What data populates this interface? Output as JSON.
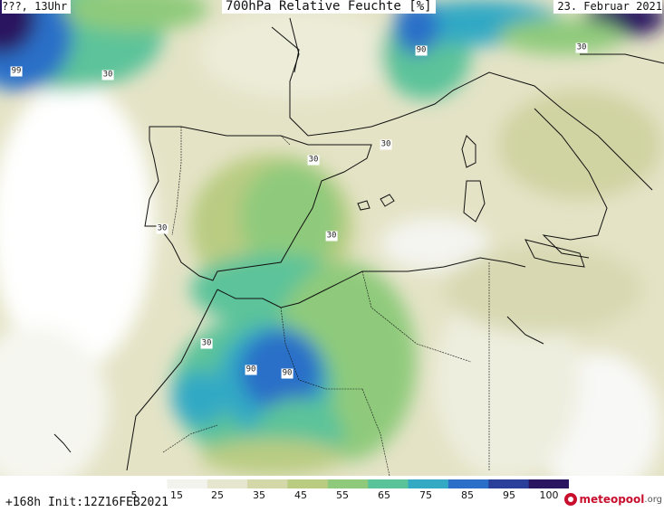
{
  "header": {
    "left": "???, 13Uhr",
    "center": "700hPa Relative Feuchte [%]",
    "right": "23. Februar 2021"
  },
  "contour_labels": [
    "99",
    "30",
    "90",
    "30",
    "30",
    "30",
    "30",
    "30",
    "30",
    "90",
    "90"
  ],
  "legend": {
    "ticks": [
      "5",
      "15",
      "25",
      "35",
      "45",
      "55",
      "65",
      "75",
      "85",
      "95",
      "100"
    ],
    "colors": [
      "#ffffff",
      "#f3f3ee",
      "#e6e6cf",
      "#d4d7a8",
      "#b9cc82",
      "#8fca7c",
      "#5bc39a",
      "#33a9c4",
      "#2c6fc8",
      "#2a3f9a",
      "#2a1560"
    ]
  },
  "footer": {
    "run_info": "+168h Init:12Z16FEB2021",
    "logo_text": "meteopool",
    "logo_suffix": ".org"
  }
}
